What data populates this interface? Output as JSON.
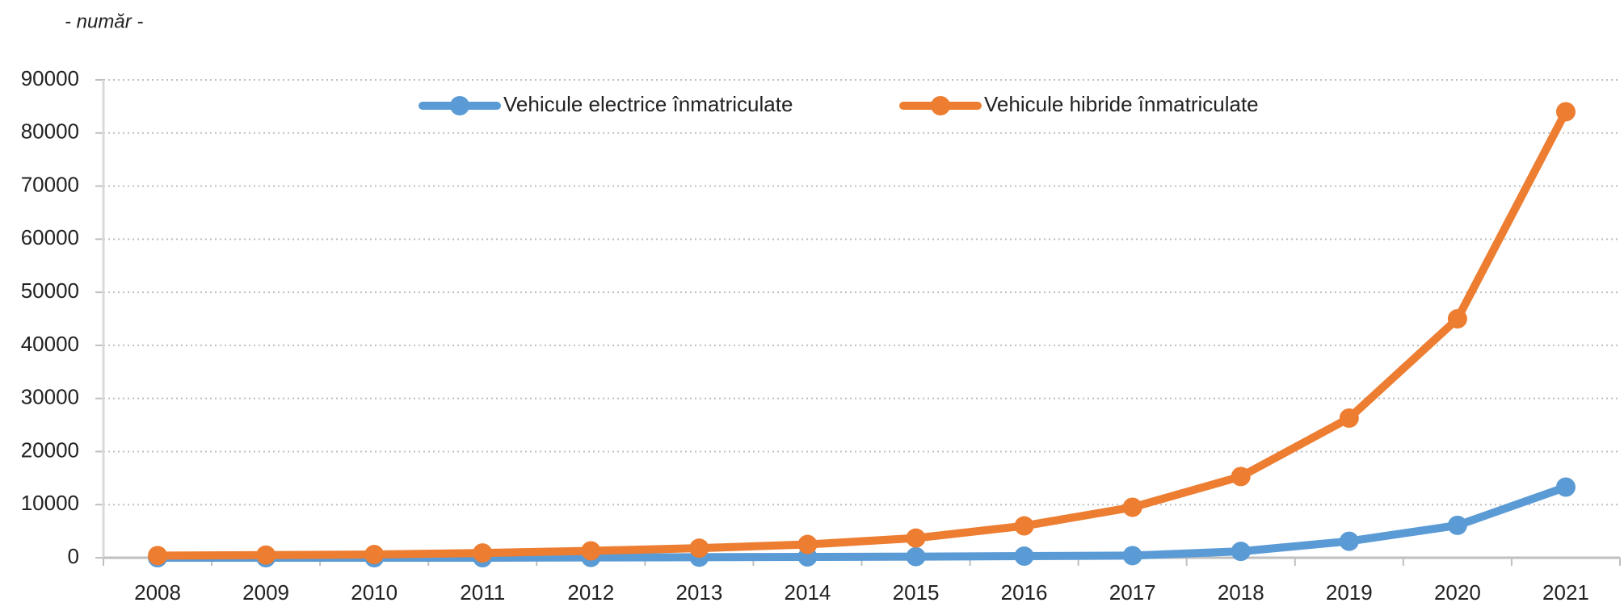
{
  "chart_data": {
    "type": "line",
    "ylabel": "- număr -",
    "categories": [
      "2008",
      "2009",
      "2010",
      "2011",
      "2012",
      "2013",
      "2014",
      "2015",
      "2016",
      "2017",
      "2018",
      "2019",
      "2020",
      "2021"
    ],
    "series": [
      {
        "name": "Vehicule electrice înmatriculate",
        "color": "#5b9bd5",
        "values": [
          0,
          0,
          0,
          0,
          50,
          100,
          150,
          200,
          300,
          400,
          1200,
          3100,
          6100,
          13300
        ]
      },
      {
        "name": "Vehicule hibride înmatriculate",
        "color": "#ed7d31",
        "values": [
          400,
          500,
          600,
          900,
          1300,
          1800,
          2500,
          3700,
          6000,
          9500,
          15300,
          26300,
          45000,
          84000
        ]
      }
    ],
    "ylim": [
      0,
      90000
    ],
    "yticks": [
      0,
      10000,
      20000,
      30000,
      40000,
      50000,
      60000,
      70000,
      80000,
      90000
    ],
    "grid": true,
    "legend": "top"
  }
}
